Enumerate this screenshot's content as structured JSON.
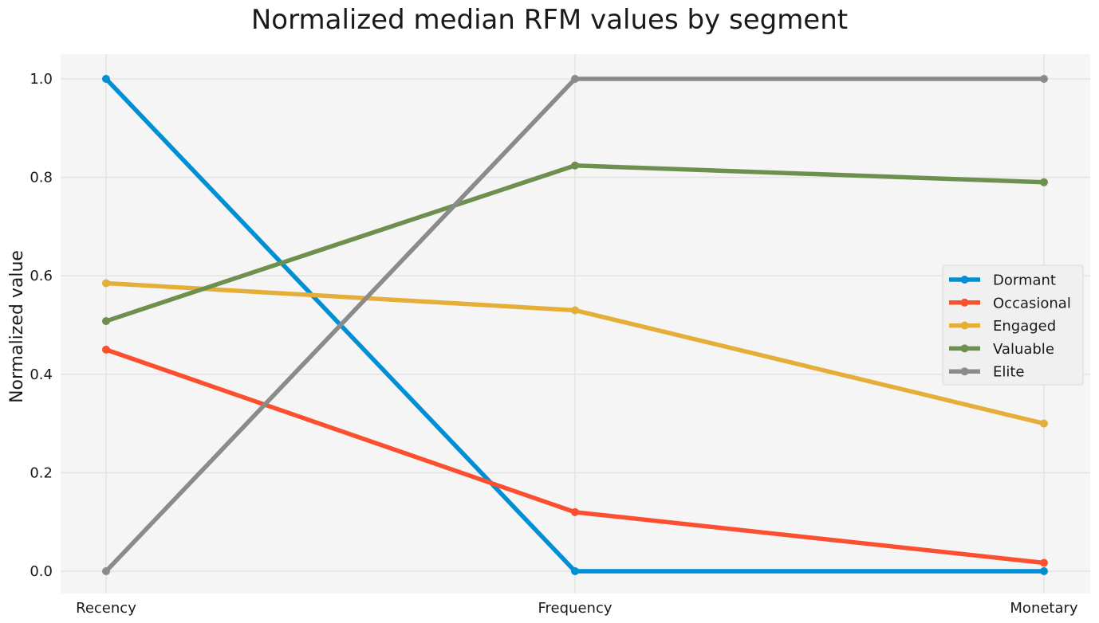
{
  "chart_data": {
    "type": "line",
    "title": "Normalized median RFM values by segment",
    "xlabel": "",
    "ylabel": "Normalized value",
    "categories": [
      "Recency",
      "Frequency",
      "Monetary"
    ],
    "ylim": [
      -0.045,
      1.05
    ],
    "yticks": [
      0.0,
      0.2,
      0.4,
      0.6,
      0.8,
      1.0
    ],
    "ytick_labels": [
      "0.0",
      "0.2",
      "0.4",
      "0.6",
      "0.8",
      "1.0"
    ],
    "grid": true,
    "legend_position": "center-right",
    "series": [
      {
        "name": "Dormant",
        "color": "#008fd5",
        "values": [
          1.0,
          0.0,
          0.0
        ]
      },
      {
        "name": "Occasional",
        "color": "#fc4f30",
        "values": [
          0.45,
          0.12,
          0.017
        ]
      },
      {
        "name": "Engaged",
        "color": "#e5ae38",
        "values": [
          0.585,
          0.53,
          0.3
        ]
      },
      {
        "name": "Valuable",
        "color": "#6d904f",
        "values": [
          0.508,
          0.824,
          0.79
        ]
      },
      {
        "name": "Elite",
        "color": "#8b8b8b",
        "values": [
          0.0,
          1.0,
          1.0
        ]
      }
    ]
  }
}
